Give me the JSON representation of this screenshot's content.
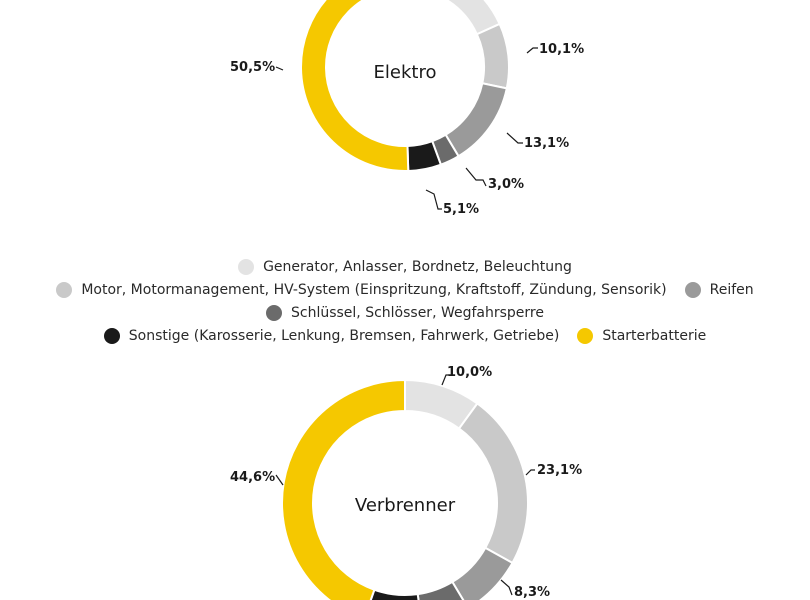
{
  "legend": {
    "rows": [
      [
        {
          "label": "Generator, Anlasser, Bordnetz, Beleuchtung",
          "color": "#e3e3e3"
        }
      ],
      [
        {
          "label": "Motor, Motormanagement, HV-System (Einspritzung, Kraftstoff, Zündung, Sensorik)",
          "color": "#c9c9c9"
        },
        {
          "label": "Reifen",
          "color": "#9a9a9a"
        }
      ],
      [
        {
          "label": "Schlüssel, Schlösser, Wegfahrsperre",
          "color": "#6b6b6b"
        }
      ],
      [
        {
          "label": "Sonstige (Karosserie, Lenkung, Bremsen, Fahrwerk, Getriebe)",
          "color": "#1a1a1a"
        },
        {
          "label": "Starterbatterie",
          "color": "#f5c800"
        }
      ]
    ]
  },
  "chart_data": [
    {
      "type": "pie",
      "subtype": "donut",
      "center_label": "Elektro",
      "categories": [
        "Generator, Anlasser, Bordnetz, Beleuchtung",
        "Motor, Motormanagement, HV-System (Einspritzung, Kraftstoff, Zündung, Sensorik)",
        "Reifen",
        "Schlüssel, Schlösser, Wegfahrsperre",
        "Sonstige (Karosserie, Lenkung, Bremsen, Fahrwerk, Getriebe)",
        "Starterbatterie"
      ],
      "values": [
        18.2,
        10.1,
        13.1,
        3.0,
        5.1,
        50.5
      ],
      "data_labels": [
        null,
        "10,1%",
        "13,1%",
        "3,0%",
        "5,1%",
        "50,5%"
      ],
      "colors": [
        "#e3e3e3",
        "#c9c9c9",
        "#9a9a9a",
        "#6b6b6b",
        "#1a1a1a",
        "#f5c800"
      ]
    },
    {
      "type": "pie",
      "subtype": "donut",
      "center_label": "Verbrenner",
      "categories": [
        "Generator, Anlasser, Bordnetz, Beleuchtung",
        "Motor, Motormanagement, HV-System (Einspritzung, Kraftstoff, Zündung, Sensorik)",
        "Reifen",
        "Schlüssel, Schlösser, Wegfahrsperre",
        "Sonstige (Karosserie, Lenkung, Bremsen, Fahrwerk, Getriebe)",
        "Starterbatterie"
      ],
      "values": [
        10.0,
        23.1,
        8.3,
        6.4,
        7.6,
        44.6
      ],
      "data_labels": [
        "10,0%",
        "23,1%",
        "8,3%",
        null,
        null,
        "44,6%"
      ],
      "colors": [
        "#e3e3e3",
        "#c9c9c9",
        "#9a9a9a",
        "#6b6b6b",
        "#1a1a1a",
        "#f5c800"
      ]
    }
  ]
}
